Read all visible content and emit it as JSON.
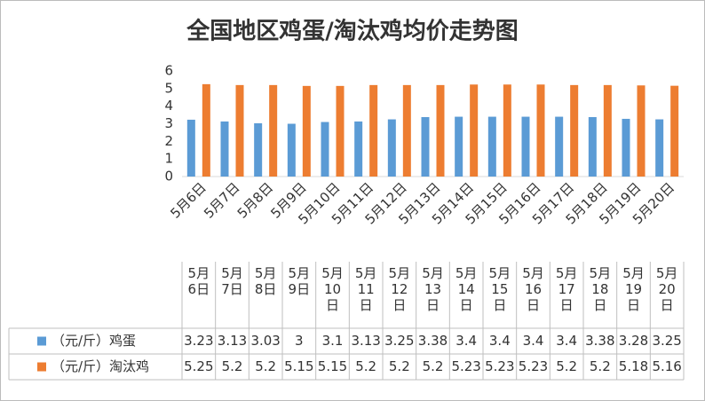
{
  "chart_data": {
    "type": "bar",
    "title": "全国地区鸡蛋/淘汰鸡均价走势图",
    "categories": [
      "5月6日",
      "5月7日",
      "5月8日",
      "5月9日",
      "5月10日",
      "5月11日",
      "5月12日",
      "5月13日",
      "5月14日",
      "5月15日",
      "5月16日",
      "5月17日",
      "5月18日",
      "5月19日",
      "5月20日"
    ],
    "series": [
      {
        "name": "（元/斤）鸡蛋",
        "color": "#5b9bd5",
        "values": [
          3.23,
          3.13,
          3.03,
          3,
          3.1,
          3.13,
          3.25,
          3.38,
          3.4,
          3.4,
          3.4,
          3.4,
          3.38,
          3.28,
          3.25
        ]
      },
      {
        "name": "（元/斤）淘汰鸡",
        "color": "#ed7d31",
        "values": [
          5.25,
          5.2,
          5.2,
          5.15,
          5.15,
          5.2,
          5.2,
          5.2,
          5.23,
          5.23,
          5.23,
          5.2,
          5.2,
          5.18,
          5.16
        ]
      }
    ],
    "ylim": [
      0,
      6
    ],
    "yticks": [
      0,
      1,
      2,
      3,
      4,
      5,
      6
    ],
    "grid": false,
    "data_table": true
  }
}
